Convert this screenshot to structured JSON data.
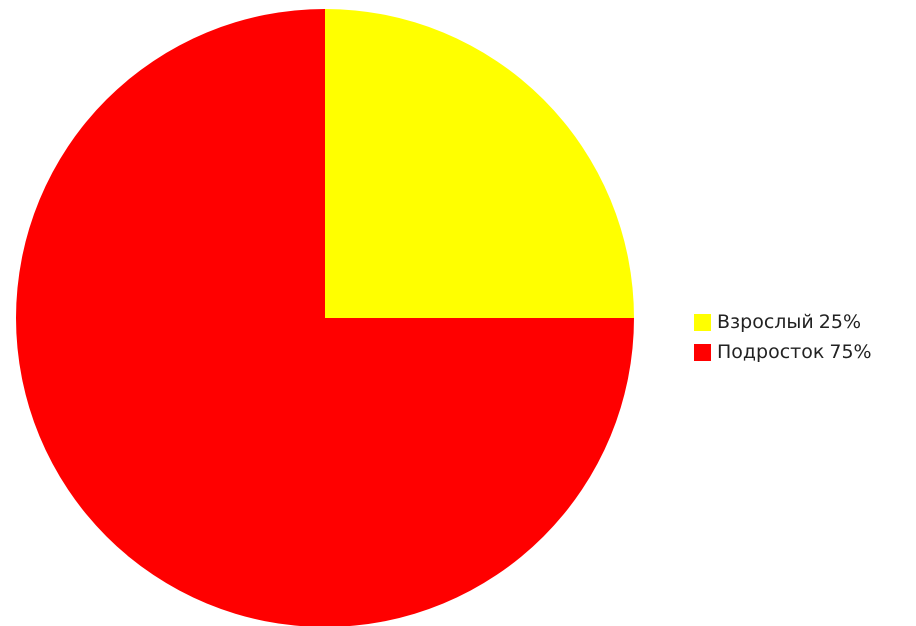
{
  "chart_data": {
    "type": "pie",
    "categories": [
      "Взрослый",
      "Подросток"
    ],
    "values": [
      25,
      75
    ],
    "value_labels": [
      "25%",
      "75%"
    ],
    "colors": [
      "#ffff00",
      "#ff0000"
    ],
    "start_angle_deg": 0,
    "direction": "clockwise-from-top",
    "legend_position": "right",
    "title": ""
  },
  "legend": {
    "items": [
      {
        "label": "Взрослый",
        "value": "25%"
      },
      {
        "label": "Подросток",
        "value": "75%"
      }
    ]
  }
}
